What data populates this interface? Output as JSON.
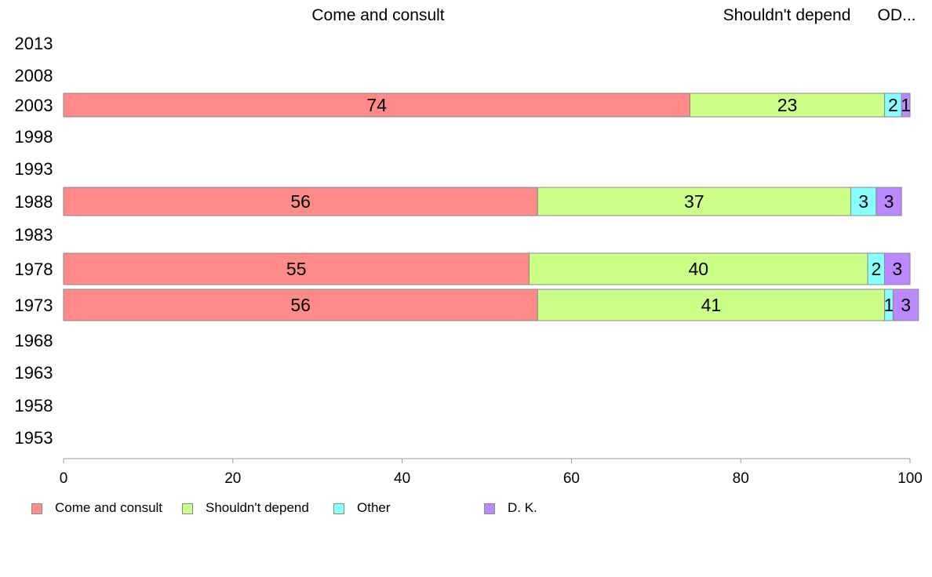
{
  "chart_data": {
    "type": "bar",
    "orientation": "horizontal",
    "stacked": true,
    "title": "",
    "xlabel": "",
    "ylabel": "",
    "xlim": [
      0,
      100
    ],
    "x_ticks": [
      0,
      20,
      40,
      60,
      80,
      100
    ],
    "categories": [
      "2013",
      "2008",
      "2003",
      "1998",
      "1993",
      "1988",
      "1983",
      "1978",
      "1973",
      "1968",
      "1963",
      "1958",
      "1953"
    ],
    "series": [
      {
        "name": "Come and consult",
        "color": "#ff8a8a",
        "values": [
          null,
          null,
          74,
          null,
          null,
          56,
          null,
          55,
          56,
          null,
          null,
          null,
          null
        ]
      },
      {
        "name": "Shouldn't depend",
        "color": "#ccff88",
        "values": [
          null,
          null,
          23,
          null,
          null,
          37,
          null,
          40,
          41,
          null,
          null,
          null,
          null
        ]
      },
      {
        "name": "Other",
        "color": "#88ffff",
        "values": [
          null,
          null,
          2,
          null,
          null,
          3,
          null,
          2,
          1,
          null,
          null,
          null,
          null
        ]
      },
      {
        "name": "D. K.",
        "color": "#bb88ff",
        "values": [
          null,
          null,
          1,
          null,
          null,
          3,
          null,
          3,
          3,
          null,
          null,
          null,
          null
        ]
      }
    ],
    "top_labels": [
      "Come and consult",
      "Shouldn't depend",
      "OD..."
    ],
    "grid": false,
    "legend_position": "bottom-left"
  }
}
